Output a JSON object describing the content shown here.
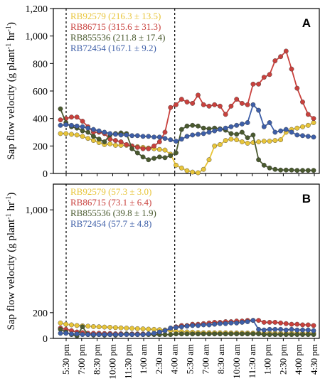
{
  "chart_data": {
    "type": "line",
    "ylabel_main": "Sap flow velocity (g plant",
    "ylabel_sup1": "-1",
    "ylabel_mid": " hr",
    "ylabel_sup2": "-1",
    "ylabel_close": ")",
    "x_tick_labels": [
      "5:30 pm",
      "7:00 pm",
      "8:30 pm",
      "10:00 pm",
      "11:30 pm",
      "1:00 am",
      "2:30 am",
      "4:00 am",
      "5:30 am",
      "7:00 am",
      "8:30 am",
      "10:00 am",
      "11:30 am",
      "1:00 pm",
      "2:30 pm",
      "4:00 pm",
      "4:30 pm"
    ],
    "dashed_lines_at": [
      "5:30 pm",
      "4:00 am"
    ],
    "colors": {
      "RB92579": "#e8c53a",
      "RB86715": "#c9413d",
      "RB855536": "#4a5a2f",
      "RB72454": "#3e5fa8"
    },
    "panels": [
      {
        "letter": "A",
        "ylim": [
          0,
          1200
        ],
        "yticks": [
          0,
          200,
          400,
          600,
          800,
          1000,
          1200
        ],
        "ytick_labels": [
          "0",
          "200",
          "400",
          "600",
          "800",
          "1,000",
          "1,200"
        ],
        "legend": [
          {
            "key": "RB92579",
            "text": "RB92579 (216.3 ± 13.5)"
          },
          {
            "key": "RB86715",
            "text": "RB86715 (315.6 ± 31.3)"
          },
          {
            "key": "RB855536",
            "text": "RB855536 (211.8 ± 17.4)"
          },
          {
            "key": "RB72454",
            "text": "RB72454 (167.1 ± 9.2)"
          }
        ],
        "series": [
          {
            "key": "RB92579",
            "values": [
              290,
              290,
              285,
              280,
              270,
              255,
              240,
              225,
              210,
              215,
              205,
              205,
              205,
              200,
              195,
              190,
              185,
              180,
              175,
              170,
              140,
              60,
              40,
              20,
              10,
              5,
              30,
              100,
              200,
              210,
              240,
              250,
              245,
              230,
              220,
              225,
              230,
              235,
              235,
              240,
              245,
              300,
              320,
              330,
              340,
              350,
              370
            ]
          },
          {
            "key": "RB86715",
            "values": [
              390,
              400,
              410,
              410,
              380,
              340,
              300,
              300,
              290,
              250,
              240,
              230,
              210,
              200,
              190,
              180,
              180,
              200,
              230,
              300,
              480,
              500,
              540,
              520,
              510,
              570,
              500,
              490,
              500,
              490,
              430,
              490,
              540,
              510,
              500,
              650,
              650,
              700,
              720,
              820,
              850,
              890,
              760,
              620,
              520,
              430,
              400
            ]
          },
          {
            "key": "RB855536",
            "values": [
              470,
              370,
              340,
              330,
              310,
              300,
              270,
              250,
              230,
              280,
              290,
              295,
              290,
              180,
              150,
              120,
              100,
              110,
              120,
              115,
              130,
              150,
              320,
              345,
              350,
              345,
              330,
              325,
              330,
              325,
              315,
              290,
              285,
              300,
              260,
              280,
              100,
              60,
              40,
              30,
              25,
              25,
              25,
              22,
              22,
              22,
              22
            ]
          },
          {
            "key": "RB72454",
            "values": [
              350,
              355,
              350,
              345,
              340,
              330,
              320,
              310,
              300,
              290,
              285,
              280,
              280,
              275,
              275,
              270,
              270,
              265,
              265,
              255,
              245,
              235,
              250,
              270,
              280,
              285,
              290,
              300,
              310,
              320,
              330,
              340,
              350,
              360,
              370,
              500,
              460,
              340,
              370,
              300,
              310,
              320,
              300,
              280,
              275,
              270,
              265
            ]
          }
        ]
      },
      {
        "letter": "B",
        "ylim": [
          0,
          1200
        ],
        "yticks": [
          0,
          200,
          1000
        ],
        "ytick_labels": [
          "0",
          "200",
          "1,000"
        ],
        "legend": [
          {
            "key": "RB92579",
            "text": "RB92579 (57.3 ± 3.0)"
          },
          {
            "key": "RB86715",
            "text": "RB86715 (73.1 ± 6.4)"
          },
          {
            "key": "RB855536",
            "text": "RB855536 (39.8 ± 1.9)"
          },
          {
            "key": "RB72454",
            "text": "RB72454 (57.7 ± 4.8)"
          }
        ],
        "series": [
          {
            "key": "RB92579",
            "values": [
              120,
              110,
              105,
              100,
              98,
              95,
              92,
              90,
              88,
              86,
              84,
              82,
              80,
              78,
              76,
              74,
              72,
              70,
              68,
              66,
              60,
              55,
              52,
              50,
              48,
              46,
              45,
              45,
              44,
              44,
              44,
              43,
              43,
              43,
              42,
              42,
              42,
              41,
              41,
              40,
              40,
              40,
              40,
              40,
              40,
              40,
              40
            ]
          },
          {
            "key": "RB86715",
            "values": [
              80,
              70,
              60,
              50,
              45,
              40,
              40,
              40,
              38,
              38,
              36,
              36,
              35,
              35,
              35,
              35,
              35,
              40,
              45,
              60,
              80,
              90,
              100,
              100,
              110,
              110,
              115,
              120,
              125,
              125,
              130,
              130,
              135,
              135,
              140,
              140,
              140,
              125,
              125,
              125,
              120,
              115,
              110,
              110,
              105,
              105,
              100
            ]
          },
          {
            "key": "RB855536",
            "values": [
              70,
              50,
              30,
              20,
              90,
              30,
              25,
              30,
              25,
              30,
              25,
              30,
              35,
              30,
              30,
              30,
              30,
              30,
              30,
              30,
              30,
              35,
              35,
              35,
              35,
              35,
              35,
              35,
              35,
              35,
              35,
              35,
              35,
              35,
              35,
              35,
              35,
              30,
              30,
              30,
              30,
              30,
              30,
              30,
              30,
              30,
              30
            ]
          },
          {
            "key": "RB72454",
            "values": [
              40,
              40,
              35,
              35,
              30,
              30,
              30,
              30,
              30,
              30,
              30,
              30,
              30,
              30,
              30,
              30,
              35,
              40,
              50,
              60,
              80,
              85,
              90,
              95,
              100,
              100,
              105,
              105,
              110,
              115,
              115,
              120,
              120,
              125,
              130,
              140,
              70,
              65,
              70,
              70,
              70,
              65,
              70,
              65,
              65,
              65,
              60
            ]
          }
        ]
      }
    ]
  }
}
